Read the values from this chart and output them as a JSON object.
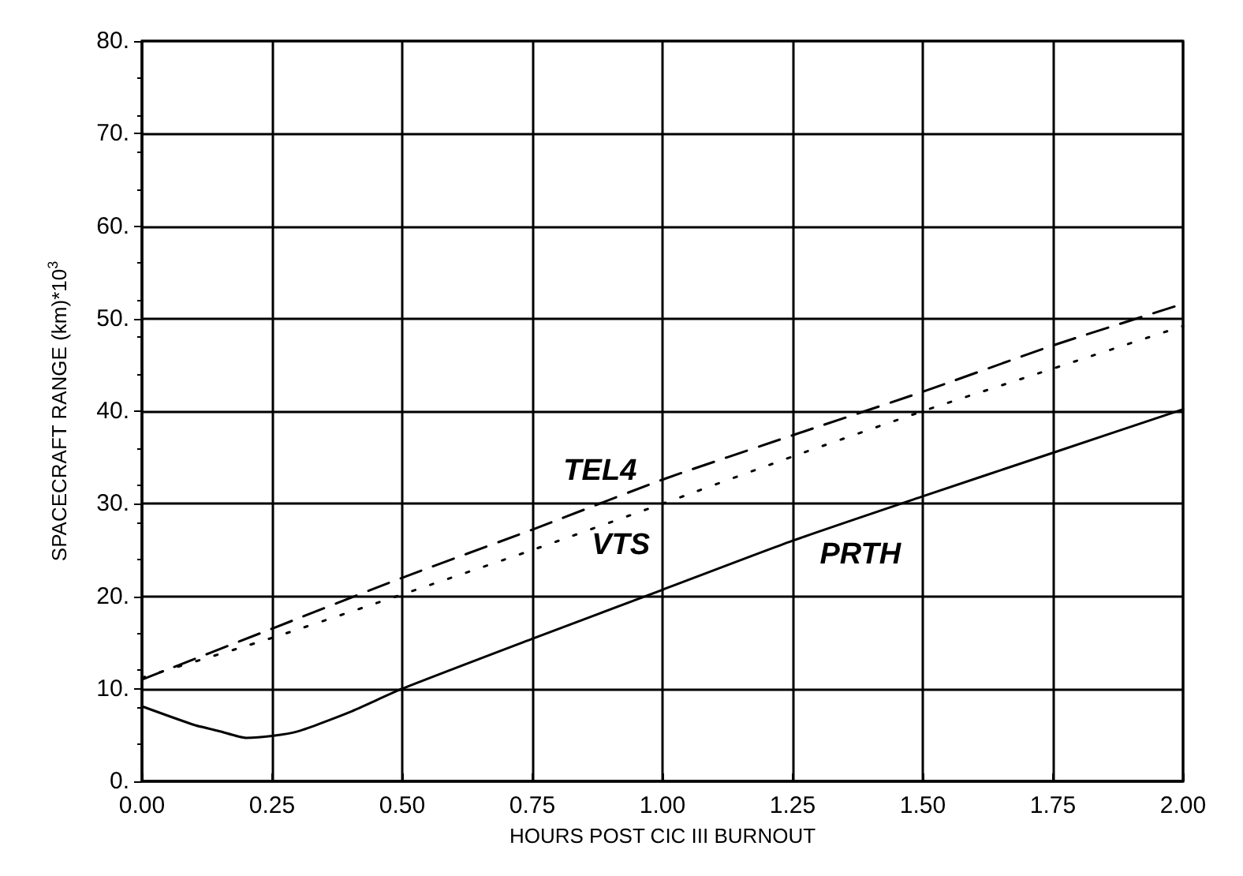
{
  "chart_data": {
    "type": "line",
    "xlabel": "HOURS POST CIC III BURNOUT",
    "ylabel": "SPACECRAFT RANGE (km)*10$^{3}$",
    "series": [
      {
        "name": "TEL4",
        "color": "#000000",
        "line_style": "dashed",
        "x": [
          0,
          0.25,
          0.5,
          0.75,
          1.0,
          1.25,
          1.5,
          1.75,
          2.0
        ],
        "values": [
          11.0,
          16.5,
          22.0,
          27.2,
          32.6,
          37.4,
          42.1,
          47.1,
          51.6
        ]
      },
      {
        "name": "VTS",
        "color": "#000000",
        "line_style": "dotted",
        "x": [
          0,
          0.25,
          0.5,
          0.75,
          1.0,
          1.25,
          1.5,
          1.75,
          2.0
        ],
        "values": [
          11.2,
          15.5,
          20.2,
          25.0,
          30.0,
          35.1,
          40.0,
          44.6,
          49.2
        ]
      },
      {
        "name": "PRTH",
        "color": "#000000",
        "line_style": "solid",
        "x": [
          0,
          0.1,
          0.15,
          0.2,
          0.25,
          0.3,
          0.4,
          0.5,
          0.75,
          1.0,
          1.25,
          1.5,
          1.75,
          2.0
        ],
        "values": [
          8.1,
          6.1,
          5.4,
          4.7,
          4.9,
          5.4,
          7.5,
          10.0,
          15.4,
          20.7,
          26.0,
          30.8,
          35.5,
          40.2
        ]
      }
    ],
    "xlim": [
      0,
      2
    ],
    "ylim": [
      0,
      80
    ],
    "xticks": [
      {
        "value": 0,
        "label": "0.00"
      },
      {
        "value": 0.25,
        "label": "0.25"
      },
      {
        "value": 0.5,
        "label": "0.50"
      },
      {
        "value": 0.75,
        "label": "0.75"
      },
      {
        "value": 1,
        "label": "1.00"
      },
      {
        "value": 1.25,
        "label": "1.25"
      },
      {
        "value": 1.5,
        "label": "1.50"
      },
      {
        "value": 1.75,
        "label": "1.75"
      },
      {
        "value": 2,
        "label": "2.00"
      }
    ],
    "yticks": [
      {
        "value": 0,
        "label": "0."
      },
      {
        "value": 10,
        "label": "10."
      },
      {
        "value": 20,
        "label": "20."
      },
      {
        "value": 30,
        "label": "30."
      },
      {
        "value": 40,
        "label": "40."
      },
      {
        "value": 50,
        "label": "50."
      },
      {
        "value": 60,
        "label": "60."
      },
      {
        "value": 70,
        "label": "70."
      },
      {
        "value": 80,
        "label": "80."
      }
    ],
    "grid": true,
    "marker": "none",
    "legend": false
  }
}
